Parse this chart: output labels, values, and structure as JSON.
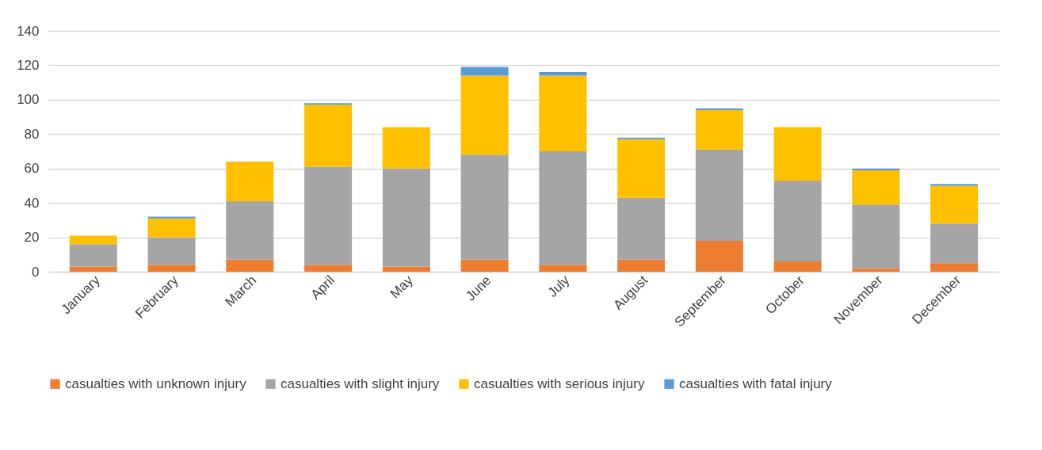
{
  "chart_data": {
    "type": "bar",
    "stacked": true,
    "categories": [
      "January",
      "February",
      "March",
      "April",
      "May",
      "June",
      "July",
      "August",
      "September",
      "October",
      "November",
      "December"
    ],
    "series": [
      {
        "name": "casualties with unknown injury",
        "color": "#ed7d31",
        "values": [
          3,
          4,
          7,
          4,
          3,
          7,
          4,
          7,
          18,
          6,
          2,
          5
        ]
      },
      {
        "name": "casualties with slight injury",
        "color": "#a5a5a5",
        "values": [
          13,
          16,
          34,
          57,
          57,
          61,
          66,
          36,
          53,
          47,
          37,
          23
        ]
      },
      {
        "name": "casualties with serious injury",
        "color": "#ffc000",
        "values": [
          5,
          11,
          23,
          36,
          24,
          46,
          44,
          34,
          23,
          31,
          20,
          22
        ]
      },
      {
        "name": "casualties with fatal injury",
        "color": "#5b9bd5",
        "values": [
          0,
          1,
          0,
          1,
          0,
          5,
          2,
          1,
          1,
          0,
          1,
          1
        ]
      }
    ],
    "ylim": [
      0,
      140
    ],
    "yticks": [
      0,
      20,
      40,
      60,
      80,
      100,
      120,
      140
    ],
    "grid": "y",
    "legend": "bottom"
  }
}
